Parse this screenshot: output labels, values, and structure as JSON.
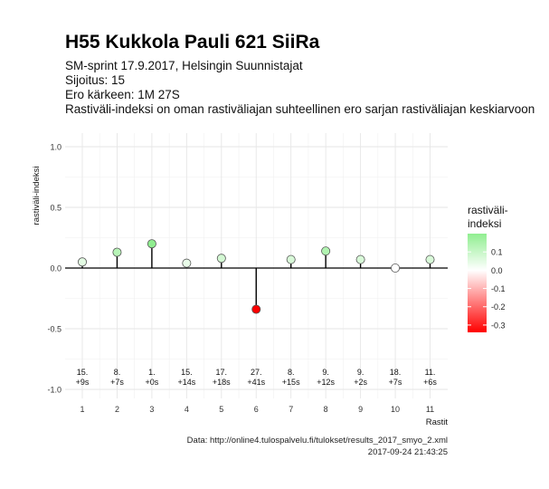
{
  "header": {
    "title": "H55 Kukkola Pauli 621 SiiRa",
    "subtitle_lines": [
      "SM-sprint 17.9.2017, Helsingin Suunnistajat",
      "Sijoitus: 15",
      "Ero kärkeen: 1M 27S",
      "Rastiväli-indeksi on oman rastiväliajan suhteellinen ero sarjan rastiväliajan keskiarvoon"
    ]
  },
  "chart_data": {
    "type": "scatter",
    "style": "lollipop",
    "xlabel": "Rastit",
    "ylabel": "rastiväli-indeksi",
    "x": [
      1,
      2,
      3,
      4,
      5,
      6,
      7,
      8,
      9,
      10,
      11
    ],
    "y": [
      0.05,
      0.13,
      0.2,
      0.04,
      0.08,
      -0.34,
      0.07,
      0.14,
      0.07,
      0.0,
      0.07
    ],
    "point_labels": [
      [
        "15.",
        "+9s"
      ],
      [
        "8.",
        "+7s"
      ],
      [
        "1.",
        "+0s"
      ],
      [
        "15.",
        "+14s"
      ],
      [
        "17.",
        "+18s"
      ],
      [
        "27.",
        "+41s"
      ],
      [
        "8.",
        "+15s"
      ],
      [
        "9.",
        "+12s"
      ],
      [
        "9.",
        "+2s"
      ],
      [
        "18.",
        "+7s"
      ],
      [
        "11.",
        "+6s"
      ]
    ],
    "ylim": [
      -1.0,
      1.0
    ],
    "yticks": [
      1.0,
      0.5,
      0.0,
      -0.5,
      -1.0
    ],
    "ytick_labels": [
      "1.0",
      "0.5",
      "0.0",
      "-0.5",
      "-1.0"
    ],
    "xticks": [
      1,
      2,
      3,
      4,
      5,
      6,
      7,
      8,
      9,
      10,
      11
    ],
    "grid": true,
    "legend": {
      "title_lines": [
        "rastiväli-",
        "indeksi"
      ],
      "placement": "right",
      "ticks": [
        0.1,
        0.0,
        -0.1,
        -0.2,
        -0.3
      ],
      "tick_labels": [
        "0.1",
        "0.0",
        "-0.1",
        "-0.2",
        "-0.3"
      ],
      "range": [
        -0.34,
        0.2
      ]
    },
    "colors": {
      "low": "#ff0000",
      "mid": "#ffffff",
      "high": "#90ee90",
      "line": "#000000",
      "grid": "#e6e6e6"
    }
  },
  "caption": {
    "source": "Data: http://online4.tulospalvelu.fi/tulokset/results_2017_smyo_2.xml",
    "timestamp": "2017-09-24 21:43:25"
  }
}
